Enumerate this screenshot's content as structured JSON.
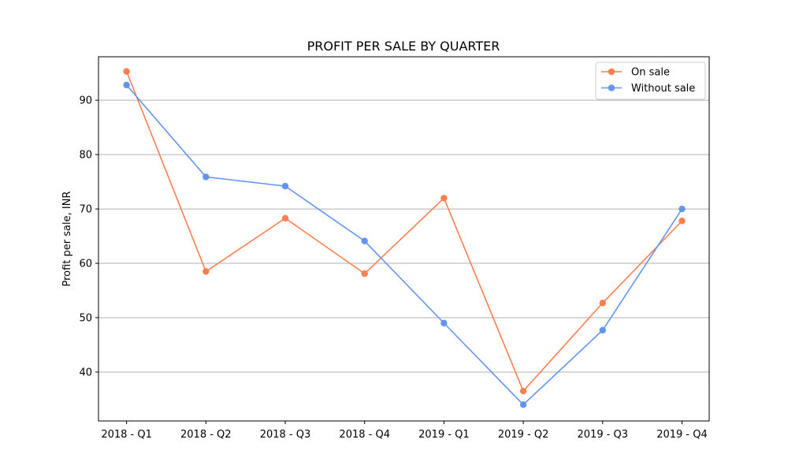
{
  "chart_data": {
    "type": "line",
    "title": "PROFIT PER SALE BY QUARTER",
    "xlabel": "",
    "ylabel": "Profit per sale, INR",
    "categories": [
      "2018 - Q1",
      "2018 - Q2",
      "2018 - Q3",
      "2018 - Q4",
      "2019 - Q1",
      "2019 - Q2",
      "2019 - Q3",
      "2019 - Q4"
    ],
    "series": [
      {
        "name": "On sale",
        "color": "#ff7f50",
        "values": [
          95.3,
          58.5,
          68.3,
          58.1,
          72.0,
          36.5,
          52.7,
          67.8
        ]
      },
      {
        "name": "Without sale",
        "color": "#6495ed",
        "values": [
          92.8,
          75.9,
          74.2,
          64.1,
          49.0,
          34.0,
          47.7,
          70.0
        ]
      }
    ],
    "ylim": [
      31,
      98
    ],
    "yticks": [
      40,
      50,
      60,
      70,
      80,
      90
    ],
    "grid": "horizontal",
    "legend_position": "top-right"
  }
}
